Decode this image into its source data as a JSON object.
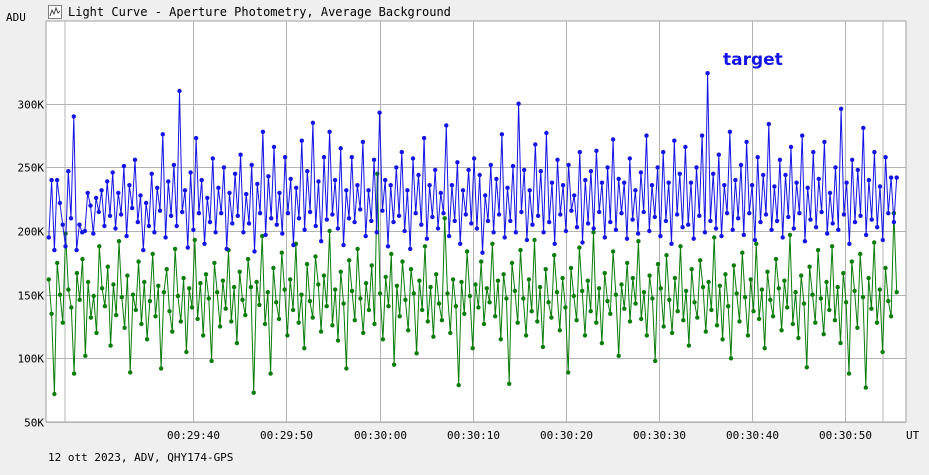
{
  "window": {
    "title": "Light Curve - Aperture Photometry, Average Background",
    "icon": "light-curve-icon"
  },
  "footer": {
    "info": "12 ott 2023, ADV, QHY174-GPS"
  },
  "colors": {
    "target": "#1414e6",
    "comparison": "#0a7d0a",
    "grid": "#b4b4b4",
    "plot_bg": "#ffffff",
    "page_bg": "#efefef"
  },
  "chart_data": {
    "type": "line",
    "ylabel": "ADU",
    "xlabel": "UT",
    "y_ticks": [
      "50K",
      "100K",
      "150K",
      "200K",
      "250K",
      "300K"
    ],
    "y_tick_values": [
      50000,
      100000,
      150000,
      200000,
      250000,
      300000
    ],
    "ylim": [
      50000,
      365000
    ],
    "x_ticks": [
      "00:29:40",
      "00:29:50",
      "00:30:00",
      "00:30:10",
      "00:30:20",
      "00:30:30",
      "00:30:40",
      "00:30:50"
    ],
    "x_tick_values": [
      1780,
      1790,
      1800,
      1810,
      1820,
      1830,
      1840,
      1850
    ],
    "xlim": [
      1764.2,
      1856.5
    ],
    "grid": true,
    "annotation": "target",
    "series": [
      {
        "name": "target",
        "color": "#1414e6",
        "x_start": 1764.5,
        "x_end": 1855.5,
        "values": [
          195000,
          240000,
          185000,
          240000,
          222000,
          205000,
          188000,
          247000,
          210000,
          290000,
          185000,
          205000,
          199000,
          200000,
          230000,
          220000,
          198000,
          226000,
          215000,
          232000,
          204000,
          239000,
          212000,
          246000,
          202000,
          230000,
          213000,
          251000,
          196000,
          236000,
          218000,
          256000,
          207000,
          228000,
          185000,
          222000,
          204000,
          245000,
          199000,
          234000,
          216000,
          276000,
          195000,
          239000,
          212000,
          252000,
          204000,
          310000,
          215000,
          232000,
          187000,
          246000,
          201000,
          273000,
          214000,
          240000,
          190000,
          226000,
          207000,
          257000,
          199000,
          234000,
          214000,
          250000,
          186000,
          230000,
          206000,
          245000,
          212000,
          260000,
          199000,
          229000,
          206000,
          252000,
          184000,
          237000,
          214000,
          278000,
          197000,
          243000,
          210000,
          266000,
          205000,
          230000,
          198000,
          258000,
          214000,
          241000,
          189000,
          234000,
          210000,
          271000,
          201000,
          247000,
          215000,
          285000,
          204000,
          239000,
          192000,
          258000,
          209000,
          278000,
          213000,
          240000,
          202000,
          265000,
          189000,
          232000,
          210000,
          258000,
          207000,
          236000,
          217000,
          270000,
          196000,
          232000,
          208000,
          256000,
          199000,
          293000,
          216000,
          240000,
          188000,
          236000,
          207000,
          250000,
          212000,
          262000,
          200000,
          232000,
          186000,
          257000,
          214000,
          244000,
          205000,
          273000,
          194000,
          236000,
          211000,
          248000,
          202000,
          230000,
          214000,
          283000,
          196000,
          236000,
          208000,
          254000,
          190000,
          232000,
          213000,
          248000,
          206000,
          257000,
          202000,
          244000,
          183000,
          228000,
          208000,
          252000,
          199000,
          241000,
          213000,
          276000,
          195000,
          234000,
          208000,
          251000,
          199000,
          300000,
          215000,
          248000,
          193000,
          232000,
          205000,
          268000,
          212000,
          247000,
          199000,
          277000,
          207000,
          238000,
          190000,
          256000,
          213000,
          236000,
          200000,
          252000,
          216000,
          228000,
          203000,
          262000,
          191000,
          240000,
          206000,
          247000,
          202000,
          263000,
          215000,
          238000,
          195000,
          250000,
          207000,
          272000,
          201000,
          241000,
          214000,
          238000,
          194000,
          257000,
          209000,
          232000,
          198000,
          246000,
          215000,
          275000,
          200000,
          236000,
          211000,
          250000,
          196000,
          262000,
          208000,
          238000,
          190000,
          271000,
          213000,
          245000,
          203000,
          266000,
          205000,
          238000,
          194000,
          250000,
          212000,
          275000,
          199000,
          324000,
          208000,
          245000,
          202000,
          260000,
          196000,
          236000,
          214000,
          278000,
          201000,
          240000,
          210000,
          252000,
          197000,
          270000,
          214000,
          236000,
          193000,
          258000,
          207000,
          244000,
          213000,
          284000,
          201000,
          235000,
          208000,
          256000,
          195000,
          244000,
          211000,
          266000,
          202000,
          238000,
          214000,
          275000,
          192000,
          234000,
          209000,
          262000,
          203000,
          241000,
          215000,
          270000,
          198000,
          230000,
          206000,
          250000,
          201000,
          296000,
          213000,
          238000,
          190000,
          256000,
          207000,
          248000,
          212000,
          281000,
          197000,
          240000,
          209000,
          262000,
          203000,
          235000,
          193000,
          258000,
          214000,
          242000,
          207000,
          242000
        ]
      },
      {
        "name": "comparison",
        "color": "#0a7d0a",
        "x_start": 1764.5,
        "x_end": 1855.5,
        "values": [
          162000,
          135000,
          72000,
          175000,
          150000,
          128000,
          198000,
          154000,
          140000,
          88000,
          167000,
          146000,
          178000,
          102000,
          160000,
          132000,
          149000,
          120000,
          188000,
          155000,
          141000,
          172000,
          110000,
          158000,
          134000,
          192000,
          148000,
          124000,
          165000,
          89000,
          150000,
          138000,
          176000,
          127000,
          160000,
          115000,
          145000,
          182000,
          133000,
          157000,
          92000,
          152000,
          170000,
          137000,
          121000,
          186000,
          149000,
          129000,
          163000,
          105000,
          155000,
          140000,
          193000,
          131000,
          159000,
          118000,
          166000,
          147000,
          98000,
          175000,
          152000,
          125000,
          161000,
          139000,
          185000,
          129000,
          156000,
          112000,
          168000,
          146000,
          134000,
          178000,
          156000,
          73000,
          160000,
          142000,
          196000,
          127000,
          152000,
          88000,
          171000,
          144000,
          131000,
          183000,
          154000,
          118000,
          162000,
          138000,
          190000,
          128000,
          150000,
          108000,
          174000,
          145000,
          132000,
          180000,
          158000,
          121000,
          165000,
          141000,
          200000,
          126000,
          154000,
          114000,
          168000,
          143000,
          92000,
          177000,
          153000,
          130000,
          186000,
          147000,
          120000,
          159000,
          138000,
          173000,
          127000,
          245000,
          151000,
          115000,
          164000,
          141000,
          182000,
          95000,
          157000,
          133000,
          176000,
          146000,
          122000,
          170000,
          151000,
          104000,
          161000,
          138000,
          188000,
          129000,
          156000,
          117000,
          166000,
          143000,
          130000,
          210000,
          151000,
          120000,
          162000,
          141000,
          79000,
          160000,
          135000,
          184000,
          149000,
          108000,
          158000,
          140000,
          176000,
          127000,
          155000,
          144000,
          190000,
          133000,
          161000,
          115000,
          166000,
          147000,
          80000,
          175000,
          153000,
          128000,
          185000,
          147000,
          118000,
          162000,
          137000,
          193000,
          129000,
          156000,
          109000,
          170000,
          144000,
          132000,
          181000,
          152000,
          122000,
          163000,
          140000,
          89000,
          171000,
          149000,
          130000,
          187000,
          153000,
          118000,
          161000,
          137000,
          199000,
          128000,
          155000,
          112000,
          167000,
          145000,
          135000,
          184000,
          150000,
          102000,
          158000,
          139000,
          175000,
          129000,
          163000,
          143000,
          192000,
          131000,
          152000,
          118000,
          165000,
          147000,
          98000,
          174000,
          155000,
          125000,
          181000,
          146000,
          120000,
          163000,
          137000,
          188000,
          130000,
          153000,
          110000,
          170000,
          144000,
          132000,
          177000,
          156000,
          121000,
          160000,
          138000,
          195000,
          126000,
          157000,
          115000,
          166000,
          141000,
          100000,
          173000,
          151000,
          129000,
          183000,
          148000,
          118000,
          162000,
          137000,
          190000,
          131000,
          154000,
          108000,
          168000,
          146000,
          133000,
          178000,
          155000,
          122000,
          161000,
          140000,
          197000,
          127000,
          152000,
          116000,
          165000,
          143000,
          93000,
          172000,
          150000,
          128000,
          185000,
          147000,
          119000,
          160000,
          138000,
          188000,
          130000,
          156000,
          112000,
          167000,
          144000,
          88000,
          176000,
          153000,
          124000,
          182000,
          148000,
          77000,
          163000,
          139000,
          191000,
          128000,
          154000,
          105000,
          171000,
          145000,
          133000,
          214000,
          152000
        ]
      }
    ]
  }
}
